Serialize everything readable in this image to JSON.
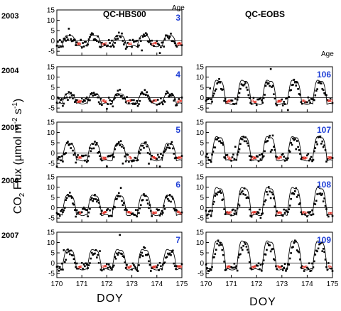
{
  "figure": {
    "ylabel_main": "CO",
    "ylabel_sub": "2",
    "ylabel_rest": " Flux (µmol m",
    "ylabel_exp1": "-2",
    "ylabel_mid": " s",
    "ylabel_exp2": "-1",
    "ylabel_end": ")",
    "age_header_left": "Age",
    "age_header_right": "Age",
    "titles": [
      "QC-HBS00",
      "QC-EOBS"
    ],
    "xlabel": "DOY",
    "years": [
      "2003",
      "2004",
      "2005",
      "2006",
      "2007"
    ]
  },
  "colors": {
    "observed": "#000000",
    "model": "#000000",
    "gapfill": "#e0261b",
    "age": "#1f3fd6"
  },
  "chart_data": [
    {
      "site": "QC-HBS00",
      "year": "2003",
      "age": "3",
      "type": "line",
      "x_range": [
        170,
        175
      ],
      "y_range": [
        -7,
        15
      ],
      "y_ticks": [
        -5,
        0,
        5,
        10,
        15
      ],
      "x_ticks": [
        170,
        171,
        172,
        173,
        174,
        175
      ],
      "day_amp": 3.2,
      "night": -2.5,
      "peak_offset": 0
    },
    {
      "site": "QC-HBS00",
      "year": "2004",
      "age": "4",
      "type": "line",
      "x_range": [
        170,
        175
      ],
      "y_range": [
        -7,
        15
      ],
      "y_ticks": [
        -5,
        0,
        5,
        10,
        15
      ],
      "x_ticks": [
        170,
        171,
        172,
        173,
        174,
        175
      ],
      "day_amp": 2.5,
      "night": -2.8,
      "peak_offset": 0
    },
    {
      "site": "QC-HBS00",
      "year": "2005",
      "age": "5",
      "type": "line",
      "x_range": [
        170,
        175
      ],
      "y_range": [
        -7,
        15
      ],
      "y_ticks": [
        -5,
        0,
        5,
        10,
        15
      ],
      "x_ticks": [
        170,
        171,
        172,
        173,
        174,
        175
      ],
      "day_amp": 5.5,
      "night": -3.5,
      "peak_offset": 0
    },
    {
      "site": "QC-HBS00",
      "year": "2006",
      "age": "6",
      "type": "line",
      "x_range": [
        170,
        175
      ],
      "y_range": [
        -7,
        15
      ],
      "y_ticks": [
        -5,
        0,
        5,
        10,
        15
      ],
      "x_ticks": [
        170,
        171,
        172,
        173,
        174,
        175
      ],
      "day_amp": 7.0,
      "night": -3.5,
      "peak_offset": 0
    },
    {
      "site": "QC-HBS00",
      "year": "2007",
      "age": "7",
      "type": "line",
      "x_range": [
        170,
        175
      ],
      "y_range": [
        -7,
        15
      ],
      "y_ticks": [
        -5,
        0,
        5,
        10,
        15
      ],
      "x_ticks": [
        170,
        171,
        172,
        173,
        174,
        175
      ],
      "day_amp": 7.5,
      "night": -3.0,
      "peak_offset": 0
    },
    {
      "site": "QC-EOBS",
      "year": "2004",
      "age": "106",
      "type": "line",
      "x_range": [
        170,
        175
      ],
      "y_range": [
        -7,
        15
      ],
      "y_ticks": [
        -5,
        0,
        5,
        10,
        15
      ],
      "x_ticks": [
        170,
        171,
        172,
        173,
        174,
        175
      ],
      "day_amp": 9.5,
      "night": -3.0,
      "peak_offset": 0
    },
    {
      "site": "QC-EOBS",
      "year": "2005",
      "age": "107",
      "type": "line",
      "x_range": [
        170,
        175
      ],
      "y_range": [
        -7,
        15
      ],
      "y_ticks": [
        -5,
        0,
        5,
        10,
        15
      ],
      "x_ticks": [
        170,
        171,
        172,
        173,
        174,
        175
      ],
      "day_amp": 9.0,
      "night": -3.5,
      "peak_offset": 0
    },
    {
      "site": "QC-EOBS",
      "year": "2006",
      "age": "108",
      "type": "line",
      "x_range": [
        170,
        175
      ],
      "y_range": [
        -7,
        15
      ],
      "y_ticks": [
        -5,
        0,
        5,
        10,
        15
      ],
      "x_ticks": [
        170,
        171,
        172,
        173,
        174,
        175
      ],
      "day_amp": 11.0,
      "night": -3.5,
      "peak_offset": 0
    },
    {
      "site": "QC-EOBS",
      "year": "2007",
      "age": "109",
      "type": "line",
      "x_range": [
        170,
        175
      ],
      "y_range": [
        -7,
        15
      ],
      "y_ticks": [
        -5,
        0,
        5,
        10,
        15
      ],
      "x_ticks": [
        170,
        171,
        172,
        173,
        174,
        175
      ],
      "day_amp": 12.0,
      "night": -3.0,
      "peak_offset": 0
    }
  ]
}
